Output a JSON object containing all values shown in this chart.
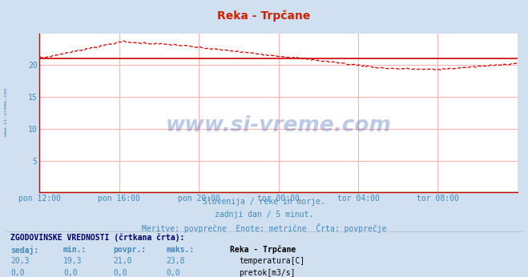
{
  "title": "Reka - Trpčane",
  "bg_color": "#d0e0f0",
  "plot_bg_color": "#ffffff",
  "grid_color": "#ffb0b0",
  "temp_color": "#cc0000",
  "flow_color": "#00bb00",
  "avg_color": "#cc0000",
  "tick_color": "#4488bb",
  "text_color": "#4488bb",
  "ylim": [
    0,
    25
  ],
  "yticks": [
    0,
    5,
    10,
    15,
    20
  ],
  "xtick_positions": [
    0,
    48,
    96,
    144,
    192,
    240,
    288
  ],
  "xtick_labels": [
    "pon 12:00",
    "pon 16:00",
    "pon 20:00",
    "tor 00:00",
    "tor 04:00",
    "tor 08:00",
    ""
  ],
  "watermark": "www.si-vreme.com",
  "watermark_color": "#2255aa",
  "sub1": "Slovenija / reke in morje.",
  "sub2": "zadnji dan / 5 minut.",
  "sub3": "Meritve: povprečne  Enote: metrične  Črta: povprečje",
  "table_title": "ZGODOVINSKE VREDNOSTI (črtkana črta):",
  "col_headers": [
    "sedaj:",
    "min.:",
    "povpr.:",
    "maks.:"
  ],
  "row1_vals": [
    "20,3",
    "19,3",
    "21,0",
    "23,8"
  ],
  "row2_vals": [
    "0,0",
    "0,0",
    "0,0",
    "0,0"
  ],
  "legend_station": "Reka - Trpčane",
  "legend1": "temperatura[C]",
  "legend2": "pretok[m3/s]",
  "temp_avg": 21.0,
  "temp_min": 19.3,
  "temp_max": 23.8,
  "temp_current": 20.3,
  "icon1_color": "#cc0000",
  "icon2_color": "#00bb00"
}
